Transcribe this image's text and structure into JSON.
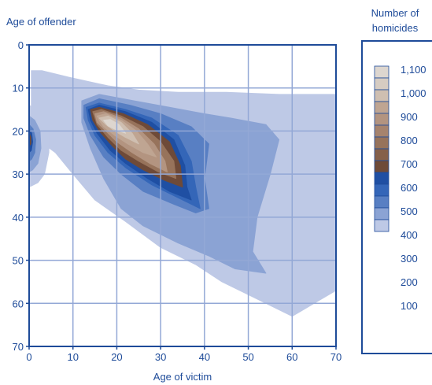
{
  "chart_data": {
    "type": "heatmap",
    "title": "",
    "xlabel": "Age of victim",
    "ylabel": "Age of offender",
    "xlim": [
      0,
      70
    ],
    "ylim": [
      0,
      70
    ],
    "y_inverted": true,
    "x_ticks": [
      "0",
      "10",
      "20",
      "30",
      "40",
      "50",
      "60",
      "70"
    ],
    "y_ticks": [
      "0",
      "10",
      "20",
      "30",
      "40",
      "50",
      "60",
      "70"
    ],
    "grid": true,
    "legend": {
      "title_line1": "Number of",
      "title_line2": "homicides",
      "placement": "right",
      "labels": [
        "1,100",
        "1,000",
        "900",
        "800",
        "700",
        "600",
        "500",
        "400",
        "300",
        "200",
        "100"
      ],
      "colors": [
        "#ddd6cf",
        "#d6ccc2",
        "#cfbfb1",
        "#bfa592",
        "#b39480",
        "#a6836d",
        "#97735b",
        "#85604a",
        "#6e4a38",
        "#1f4fa3",
        "#3466b8",
        "#587fc3",
        "#8ba3d4",
        "#bec9e6"
      ]
    },
    "contours": [
      {
        "level": 0,
        "color": "#bec9e6",
        "points": [
          [
            0.5,
            6
          ],
          [
            3,
            6
          ],
          [
            9,
            7.5
          ],
          [
            18,
            9.5
          ],
          [
            25,
            10.5
          ],
          [
            34,
            11
          ],
          [
            45,
            11
          ],
          [
            57,
            11.5
          ],
          [
            70,
            11.5
          ],
          [
            70,
            57
          ],
          [
            60,
            63
          ],
          [
            50,
            58
          ],
          [
            44,
            55
          ],
          [
            38,
            51
          ],
          [
            30,
            47
          ],
          [
            22,
            41
          ],
          [
            15,
            36
          ],
          [
            10,
            30
          ],
          [
            6,
            25
          ],
          [
            2,
            22
          ],
          [
            0.5,
            21
          ]
        ]
      },
      {
        "level": 100,
        "color": "#8ba3d4",
        "points": [
          [
            12,
            13
          ],
          [
            16,
            11.5
          ],
          [
            24,
            13
          ],
          [
            32,
            14.5
          ],
          [
            40,
            16
          ],
          [
            46,
            17
          ],
          [
            54,
            18.5
          ],
          [
            57,
            22
          ],
          [
            55,
            30
          ],
          [
            52,
            40
          ],
          [
            51,
            48
          ],
          [
            54,
            53
          ],
          [
            47,
            52
          ],
          [
            41,
            49
          ],
          [
            34,
            46
          ],
          [
            26,
            42
          ],
          [
            21,
            38
          ],
          [
            17,
            31
          ],
          [
            14,
            24
          ],
          [
            12,
            18
          ]
        ]
      },
      {
        "level": 200,
        "color": "#587fc3",
        "points": [
          [
            12.5,
            14
          ],
          [
            16,
            12.5
          ],
          [
            23,
            14
          ],
          [
            30,
            16
          ],
          [
            37,
            19
          ],
          [
            41,
            23
          ],
          [
            40,
            31
          ],
          [
            41,
            38
          ],
          [
            38,
            39
          ],
          [
            33,
            37
          ],
          [
            26,
            34
          ],
          [
            21,
            30
          ],
          [
            17,
            26
          ],
          [
            14,
            21
          ],
          [
            12.5,
            17
          ]
        ]
      },
      {
        "level": 300,
        "color": "#3466b8",
        "points": [
          [
            13,
            14.5
          ],
          [
            16,
            13.5
          ],
          [
            22,
            15
          ],
          [
            28,
            17
          ],
          [
            34,
            21
          ],
          [
            37,
            27
          ],
          [
            38,
            33
          ],
          [
            39,
            38
          ],
          [
            34,
            35.5
          ],
          [
            28,
            32.5
          ],
          [
            22,
            28.5
          ],
          [
            18,
            25
          ],
          [
            15,
            21
          ],
          [
            13.5,
            17.5
          ]
        ]
      },
      {
        "level": 400,
        "color": "#1f4fa3",
        "points": [
          [
            13.5,
            15
          ],
          [
            16,
            14
          ],
          [
            22,
            15.5
          ],
          [
            28,
            18
          ],
          [
            33,
            22
          ],
          [
            35.5,
            28
          ],
          [
            36,
            33
          ],
          [
            37,
            36
          ],
          [
            32,
            34
          ],
          [
            27,
            31
          ],
          [
            22,
            27.5
          ],
          [
            18.5,
            24.5
          ],
          [
            15.5,
            20.5
          ],
          [
            14,
            17.5
          ]
        ]
      },
      {
        "level": 500,
        "color": "#6e4a38",
        "points": [
          [
            14,
            15
          ],
          [
            16,
            14.5
          ],
          [
            21.5,
            16
          ],
          [
            27,
            18.5
          ],
          [
            32,
            22.5
          ],
          [
            34.5,
            28
          ],
          [
            35,
            33
          ],
          [
            31,
            31.5
          ],
          [
            26,
            29
          ],
          [
            22,
            26.5
          ],
          [
            19,
            23.5
          ],
          [
            16,
            20
          ],
          [
            14.5,
            17.5
          ]
        ]
      },
      {
        "level": 600,
        "color": "#97735b",
        "points": [
          [
            14.5,
            15.5
          ],
          [
            16.5,
            15
          ],
          [
            21,
            16.5
          ],
          [
            26,
            19
          ],
          [
            30,
            22.5
          ],
          [
            33,
            27
          ],
          [
            33.5,
            31
          ],
          [
            29.5,
            29.5
          ],
          [
            25,
            27
          ],
          [
            21,
            24.5
          ],
          [
            18,
            21.5
          ],
          [
            15.5,
            18.5
          ]
        ]
      },
      {
        "level": 700,
        "color": "#b39480",
        "points": [
          [
            15,
            16
          ],
          [
            17,
            15.5
          ],
          [
            21,
            17
          ],
          [
            25,
            19.5
          ],
          [
            28.5,
            23
          ],
          [
            31,
            27
          ],
          [
            31.5,
            29.5
          ],
          [
            27.5,
            27.5
          ],
          [
            23.5,
            25
          ],
          [
            20,
            22.5
          ],
          [
            17.5,
            20
          ],
          [
            15.5,
            18
          ]
        ]
      },
      {
        "level": 800,
        "color": "#bfa592",
        "points": [
          [
            15.5,
            16.5
          ],
          [
            17.5,
            16
          ],
          [
            21,
            17.5
          ],
          [
            24.5,
            20
          ],
          [
            27,
            23
          ],
          [
            29,
            26
          ],
          [
            26,
            25
          ],
          [
            22.5,
            23
          ],
          [
            19.5,
            21
          ],
          [
            17,
            19
          ],
          [
            16,
            17.5
          ]
        ]
      },
      {
        "level": 900,
        "color": "#cfbfb1",
        "points": [
          [
            16,
            17
          ],
          [
            18,
            16.5
          ],
          [
            21,
            18
          ],
          [
            23.5,
            20.5
          ],
          [
            25,
            23
          ],
          [
            22,
            21.5
          ],
          [
            19.5,
            20
          ],
          [
            17.5,
            18.5
          ]
        ]
      },
      {
        "level": 1000,
        "color": "#ddd6cf",
        "points": [
          [
            17,
            17.5
          ],
          [
            18.5,
            17.3
          ],
          [
            20.5,
            18.5
          ],
          [
            22,
            20.5
          ],
          [
            20,
            19.8
          ],
          [
            18,
            18.8
          ]
        ]
      },
      {
        "level": 0,
        "color": "#bec9e6",
        "points": [
          [
            0,
            14
          ],
          [
            1.5,
            15
          ],
          [
            3,
            17
          ],
          [
            4.5,
            20
          ],
          [
            4.5,
            25
          ],
          [
            3.5,
            30
          ],
          [
            2,
            32
          ],
          [
            0,
            33
          ]
        ]
      },
      {
        "level": 100,
        "color": "#8ba3d4",
        "points": [
          [
            0,
            16.5
          ],
          [
            1.3,
            17.5
          ],
          [
            2.5,
            20
          ],
          [
            2.7,
            24
          ],
          [
            2,
            27.5
          ],
          [
            0.8,
            29
          ],
          [
            0,
            29.5
          ]
        ]
      },
      {
        "level": 200,
        "color": "#587fc3",
        "points": [
          [
            0,
            18.5
          ],
          [
            0.9,
            19.5
          ],
          [
            1.5,
            22
          ],
          [
            1.3,
            25
          ],
          [
            0.6,
            26.5
          ],
          [
            0,
            27
          ]
        ]
      },
      {
        "level": 300,
        "color": "#1f4fa3",
        "points": [
          [
            0,
            19.5
          ],
          [
            0.6,
            20.5
          ],
          [
            0.8,
            22.5
          ],
          [
            0.5,
            24.5
          ],
          [
            0,
            25
          ]
        ]
      },
      {
        "level": 400,
        "color": "#6e4a38",
        "points": [
          [
            0,
            20.5
          ],
          [
            0.4,
            21.5
          ],
          [
            0.4,
            23
          ],
          [
            0,
            23.5
          ]
        ]
      }
    ],
    "zero_regions": [
      [
        [
          0,
          52
        ],
        [
          5,
          52
        ],
        [
          8,
          56
        ],
        [
          10,
          62
        ],
        [
          11,
          67
        ],
        [
          14,
          70
        ],
        [
          0,
          70
        ]
      ],
      [
        [
          0,
          41
        ],
        [
          0.4,
          41
        ],
        [
          0.4,
          50
        ],
        [
          0,
          50
        ]
      ]
    ]
  }
}
